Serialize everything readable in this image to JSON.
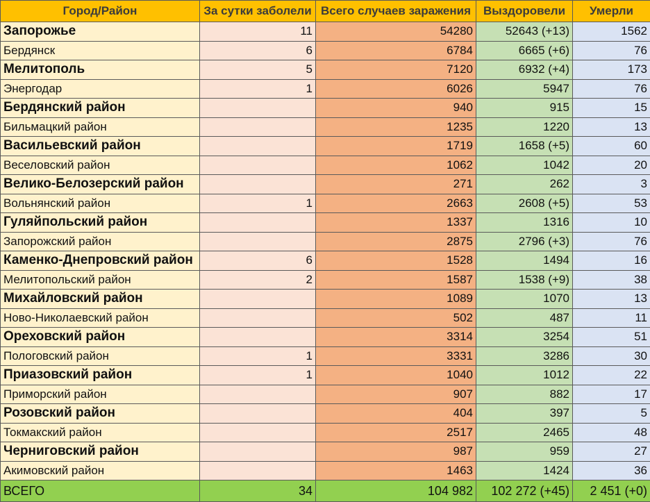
{
  "headers": [
    "Город/Район",
    "За сутки заболели",
    "Всего случаев заражения",
    "Выздоровели",
    "Умерли"
  ],
  "rows": [
    {
      "name": "Запорожье",
      "day": "11",
      "total": "54280",
      "recovered": "52643 (+13)",
      "died": "1562"
    },
    {
      "name": "Бердянск",
      "day": "6",
      "total": "6784",
      "recovered": "6665 (+6)",
      "died": "76"
    },
    {
      "name": "Мелитополь",
      "day": "5",
      "total": "7120",
      "recovered": "6932 (+4)",
      "died": "173"
    },
    {
      "name": "Энергодар",
      "day": "1",
      "total": "6026",
      "recovered": "5947",
      "died": "76"
    },
    {
      "name": "Бердянский район",
      "day": "",
      "total": "940",
      "recovered": "915",
      "died": "15"
    },
    {
      "name": "Бильмацкий район",
      "day": "",
      "total": "1235",
      "recovered": "1220",
      "died": "13"
    },
    {
      "name": "Васильевский район",
      "day": "",
      "total": "1719",
      "recovered": "1658 (+5)",
      "died": "60"
    },
    {
      "name": "Веселовский район",
      "day": "",
      "total": "1062",
      "recovered": "1042",
      "died": "20"
    },
    {
      "name": "Велико-Белозерский район",
      "day": "",
      "total": "271",
      "recovered": "262",
      "died": "3"
    },
    {
      "name": "Вольнянский район",
      "day": "1",
      "total": "2663",
      "recovered": "2608 (+5)",
      "died": "53"
    },
    {
      "name": "Гуляйпольский район",
      "day": "",
      "total": "1337",
      "recovered": "1316",
      "died": "10"
    },
    {
      "name": "Запорожский район",
      "day": "",
      "total": "2875",
      "recovered": "2796 (+3)",
      "died": "76"
    },
    {
      "name": "Каменко-Днепровский район",
      "day": "6",
      "total": "1528",
      "recovered": "1494",
      "died": "16"
    },
    {
      "name": "Мелитопольский район",
      "day": "2",
      "total": "1587",
      "recovered": "1538 (+9)",
      "died": "38"
    },
    {
      "name": "Михайловский район",
      "day": "",
      "total": "1089",
      "recovered": "1070",
      "died": "13"
    },
    {
      "name": "Ново-Николаевский район",
      "day": "",
      "total": "502",
      "recovered": "487",
      "died": "11"
    },
    {
      "name": "Ореховский район",
      "day": "",
      "total": "3314",
      "recovered": "3254",
      "died": "51"
    },
    {
      "name": "Пологовский район",
      "day": "1",
      "total": "3331",
      "recovered": "3286",
      "died": "30"
    },
    {
      "name": "Приазовский район",
      "day": "1",
      "total": "1040",
      "recovered": "1012",
      "died": "22"
    },
    {
      "name": "Приморский район",
      "day": "",
      "total": "907",
      "recovered": "882",
      "died": "17"
    },
    {
      "name": "Розовский район",
      "day": "",
      "total": "404",
      "recovered": "397",
      "died": "5"
    },
    {
      "name": "Токмакский район",
      "day": "",
      "total": "2517",
      "recovered": "2465",
      "died": "48"
    },
    {
      "name": "Черниговский район",
      "day": "",
      "total": "987",
      "recovered": "959",
      "died": "27"
    },
    {
      "name": "Акимовский район",
      "day": "",
      "total": "1463",
      "recovered": "1424",
      "died": "36"
    }
  ],
  "footer": {
    "name": "ВСЕГО",
    "day": "34",
    "total": "104 982",
    "recovered": "102 272 (+45)",
    "died": "2 451 (+0)"
  }
}
